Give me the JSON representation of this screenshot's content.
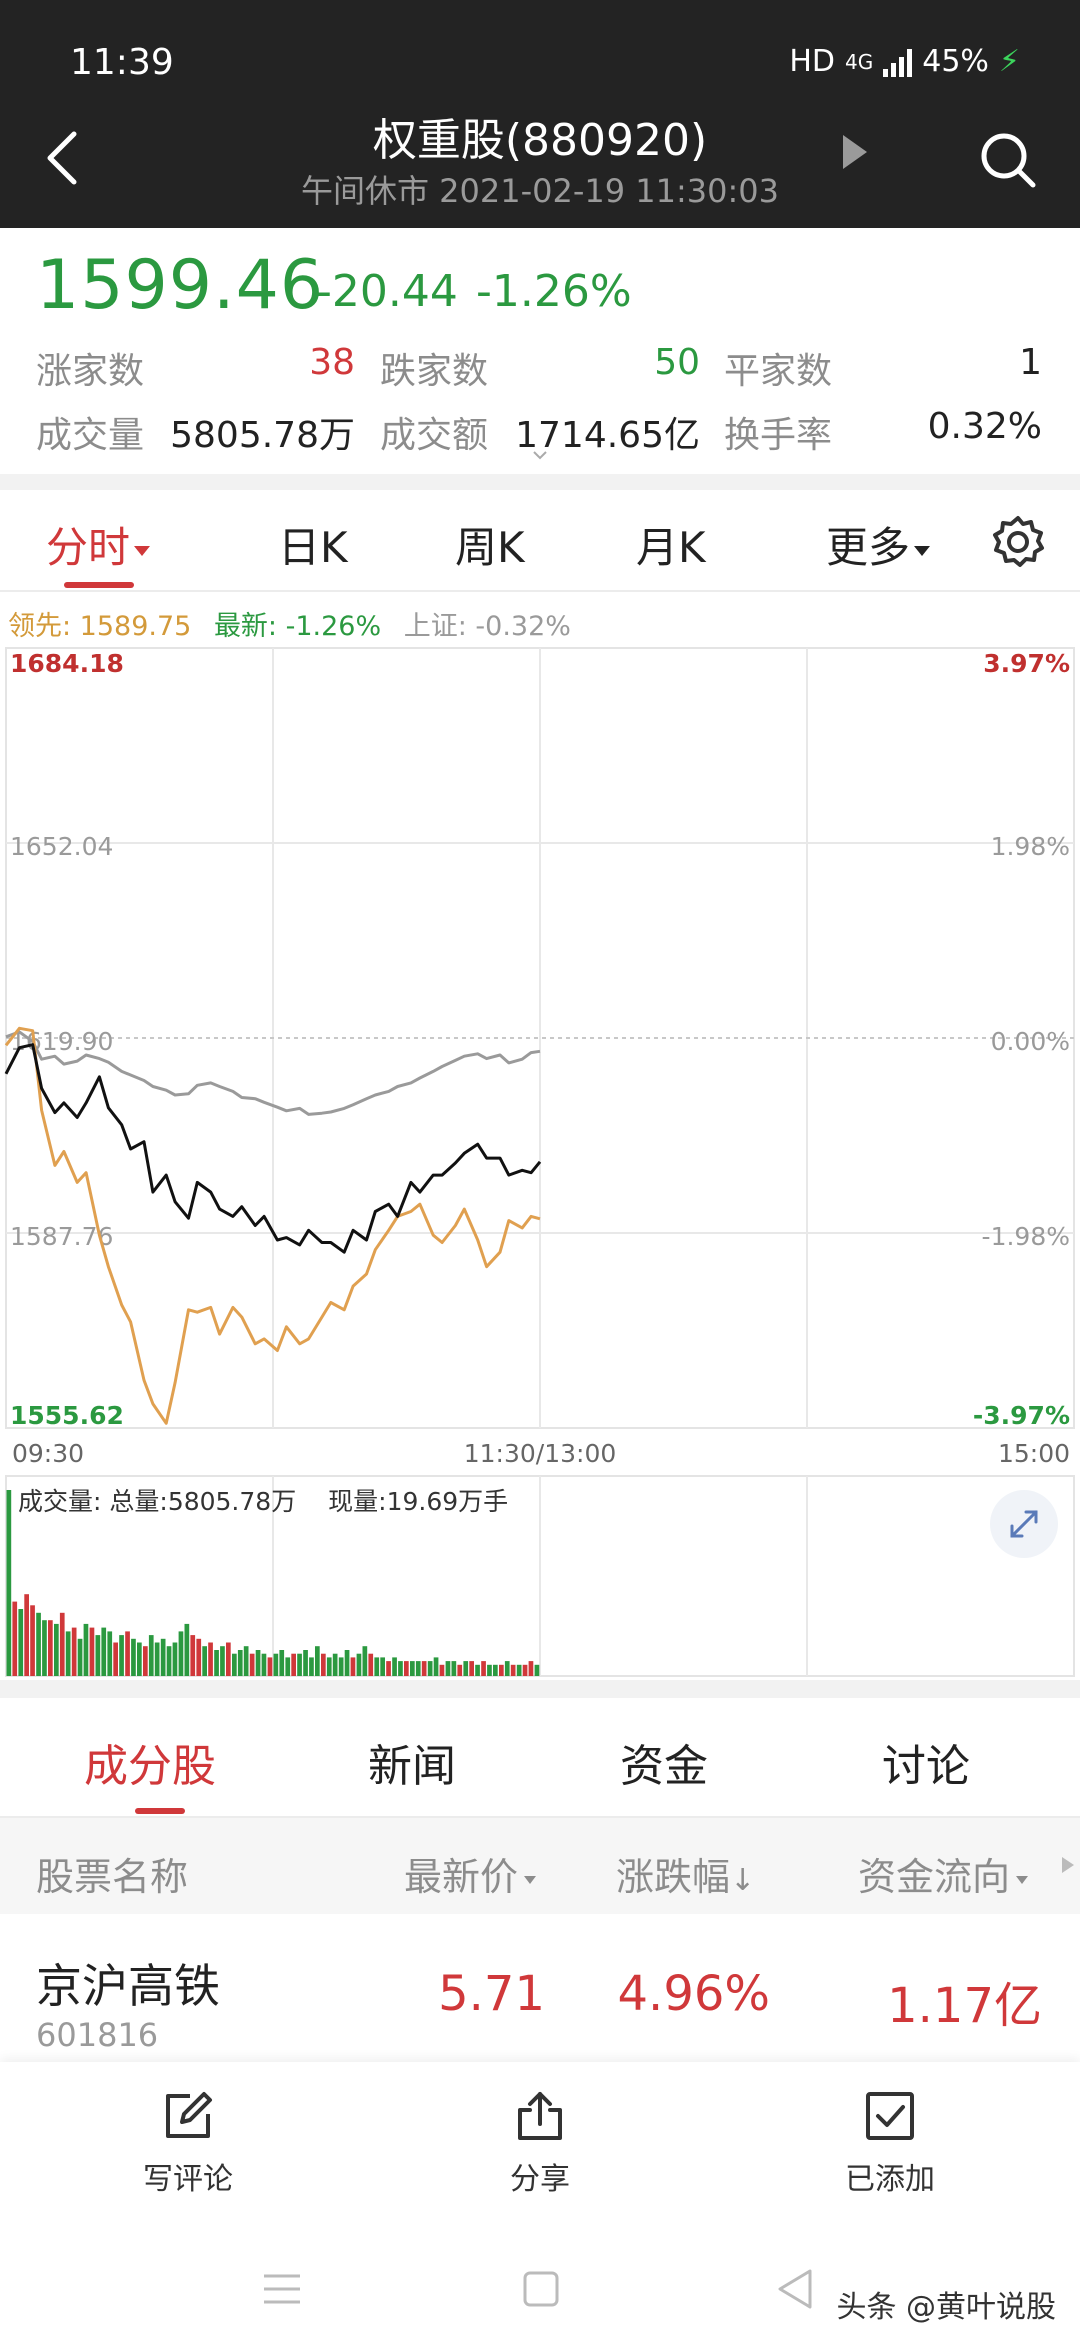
{
  "status_bar": {
    "time": "11:39",
    "network": "HD",
    "signal": "4G",
    "battery": "45%"
  },
  "header": {
    "title": "权重股(880920)",
    "subtitle": "午间休市 2021-02-19 11:30:03"
  },
  "quote": {
    "price": "1599.46",
    "change": "-20.44",
    "change_pct": "-1.26%",
    "rise_label": "涨家数",
    "rise_value": "38",
    "fall_label": "跌家数",
    "fall_value": "50",
    "flat_label": "平家数",
    "flat_value": "1",
    "volume_label": "成交量",
    "volume_value": "5805.78万",
    "amount_label": "成交额",
    "amount_value": "1714.65亿",
    "turnover_label": "换手率",
    "turnover_value": "0.32%"
  },
  "period_tabs": [
    "分时",
    "日K",
    "周K",
    "月K",
    "更多"
  ],
  "legend": {
    "leader": "领先: 1589.75",
    "latest": "最新: -1.26%",
    "index": "上证: -0.32%"
  },
  "chart_data": {
    "type": "line",
    "y_ticks_left": [
      "1684.18",
      "1652.04",
      "1619.90",
      "1587.76",
      "1555.62"
    ],
    "y_ticks_right": [
      "3.97%",
      "1.98%",
      "0.00%",
      "-1.98%",
      "-3.97%"
    ],
    "ylim": [
      1555.62,
      1684.18
    ],
    "x_ticks": [
      "09:30",
      "11:30/13:00",
      "15:00"
    ],
    "series": [
      {
        "color": "#111111",
        "x": [
          0,
          3,
          6,
          8,
          11,
          13,
          16,
          18,
          21,
          23,
          26,
          28,
          31,
          33,
          36,
          38,
          41,
          43,
          46,
          48,
          51,
          53,
          56,
          58,
          61,
          63,
          66,
          68,
          71,
          73,
          76,
          78,
          81,
          83,
          86,
          88,
          91,
          93,
          96,
          98,
          101,
          103,
          106,
          108,
          111,
          113,
          116,
          118,
          120
        ],
        "values": [
          1614.0,
          1618.3,
          1618.8,
          1611.6,
          1607.6,
          1609.2,
          1606.8,
          1609.2,
          1613.5,
          1608.4,
          1605.6,
          1601.6,
          1602.8,
          1594.5,
          1597.3,
          1592.9,
          1590.2,
          1596.1,
          1594.5,
          1591.7,
          1590.5,
          1592.1,
          1589.0,
          1590.5,
          1586.6,
          1587.0,
          1585.8,
          1588.2,
          1586.2,
          1586.2,
          1584.6,
          1588.2,
          1586.6,
          1591.3,
          1592.5,
          1590.5,
          1596.1,
          1594.5,
          1597.3,
          1597.3,
          1599.3,
          1600.9,
          1602.4,
          1600.1,
          1600.1,
          1597.3,
          1598.1,
          1597.7,
          1599.5
        ]
      },
      {
        "color": "#e0a050",
        "x": [
          0,
          3,
          6,
          8,
          11,
          13,
          16,
          18,
          21,
          23,
          26,
          28,
          31,
          33,
          36,
          38,
          41,
          43,
          46,
          48,
          51,
          53,
          56,
          58,
          61,
          63,
          66,
          68,
          71,
          73,
          76,
          78,
          81,
          83,
          86,
          88,
          91,
          93,
          96,
          98,
          101,
          103,
          106,
          108,
          111,
          113,
          116,
          118,
          120
        ],
        "values": [
          1618.7,
          1621.5,
          1621.1,
          1608.0,
          1598.9,
          1601.2,
          1596.1,
          1597.7,
          1587.4,
          1582.2,
          1575.9,
          1573.1,
          1563.5,
          1559.6,
          1556.4,
          1563.1,
          1575.1,
          1574.7,
          1575.5,
          1571.1,
          1575.5,
          1573.9,
          1569.5,
          1570.3,
          1568.4,
          1572.3,
          1569.5,
          1570.3,
          1573.9,
          1576.3,
          1575.1,
          1579.0,
          1581.0,
          1585.0,
          1588.2,
          1590.5,
          1591.3,
          1592.5,
          1587.4,
          1586.2,
          1589.0,
          1591.7,
          1586.6,
          1582.2,
          1584.6,
          1589.8,
          1588.6,
          1590.5,
          1590.1
        ]
      },
      {
        "color": "#9a9a9a",
        "x": [
          0,
          3,
          6,
          8,
          11,
          13,
          16,
          18,
          21,
          23,
          26,
          28,
          31,
          33,
          36,
          38,
          41,
          43,
          46,
          48,
          51,
          53,
          56,
          58,
          61,
          63,
          66,
          68,
          71,
          73,
          76,
          78,
          81,
          83,
          86,
          88,
          91,
          93,
          96,
          98,
          101,
          103,
          106,
          108,
          111,
          113,
          116,
          118,
          120
        ],
        "values": [
          1620.1,
          1620.9,
          1619.3,
          1616.4,
          1616.9,
          1615.6,
          1616.1,
          1617.1,
          1616.5,
          1615.9,
          1614.4,
          1613.8,
          1612.9,
          1611.9,
          1611.3,
          1610.5,
          1610.7,
          1612.1,
          1612.5,
          1611.9,
          1611.1,
          1610.1,
          1609.9,
          1609.3,
          1608.5,
          1607.9,
          1608.3,
          1607.3,
          1607.5,
          1607.7,
          1608.3,
          1608.9,
          1609.9,
          1610.5,
          1611.1,
          1611.9,
          1612.5,
          1613.3,
          1614.4,
          1615.2,
          1616.2,
          1616.9,
          1617.3,
          1616.5,
          1617.1,
          1615.8,
          1616.4,
          1617.5,
          1617.7
        ]
      }
    ],
    "volume": {
      "total": "总量:5805.78万",
      "current": "现量:19.69万手",
      "label": "成交量:",
      "bars": [
        {
          "v": 100,
          "c": "g"
        },
        {
          "v": 40,
          "c": "r"
        },
        {
          "v": 36,
          "c": "g"
        },
        {
          "v": 44,
          "c": "r"
        },
        {
          "v": 38,
          "c": "r"
        },
        {
          "v": 34,
          "c": "g"
        },
        {
          "v": 30,
          "c": "g"
        },
        {
          "v": 30,
          "c": "r"
        },
        {
          "v": 28,
          "c": "g"
        },
        {
          "v": 34,
          "c": "r"
        },
        {
          "v": 24,
          "c": "g"
        },
        {
          "v": 26,
          "c": "r"
        },
        {
          "v": 20,
          "c": "g"
        },
        {
          "v": 28,
          "c": "g"
        },
        {
          "v": 26,
          "c": "r"
        },
        {
          "v": 22,
          "c": "g"
        },
        {
          "v": 26,
          "c": "g"
        },
        {
          "v": 24,
          "c": "g"
        },
        {
          "v": 18,
          "c": "r"
        },
        {
          "v": 22,
          "c": "g"
        },
        {
          "v": 24,
          "c": "r"
        },
        {
          "v": 20,
          "c": "g"
        },
        {
          "v": 18,
          "c": "g"
        },
        {
          "v": 16,
          "c": "r"
        },
        {
          "v": 22,
          "c": "g"
        },
        {
          "v": 18,
          "c": "g"
        },
        {
          "v": 20,
          "c": "g"
        },
        {
          "v": 16,
          "c": "g"
        },
        {
          "v": 18,
          "c": "g"
        },
        {
          "v": 24,
          "c": "g"
        },
        {
          "v": 28,
          "c": "g"
        },
        {
          "v": 22,
          "c": "r"
        },
        {
          "v": 20,
          "c": "r"
        },
        {
          "v": 16,
          "c": "g"
        },
        {
          "v": 18,
          "c": "r"
        },
        {
          "v": 14,
          "c": "g"
        },
        {
          "v": 16,
          "c": "g"
        },
        {
          "v": 18,
          "c": "r"
        },
        {
          "v": 12,
          "c": "g"
        },
        {
          "v": 14,
          "c": "g"
        },
        {
          "v": 16,
          "c": "g"
        },
        {
          "v": 12,
          "c": "r"
        },
        {
          "v": 14,
          "c": "g"
        },
        {
          "v": 12,
          "c": "g"
        },
        {
          "v": 10,
          "c": "r"
        },
        {
          "v": 12,
          "c": "g"
        },
        {
          "v": 14,
          "c": "g"
        },
        {
          "v": 10,
          "c": "g"
        },
        {
          "v": 12,
          "c": "r"
        },
        {
          "v": 12,
          "c": "g"
        },
        {
          "v": 14,
          "c": "g"
        },
        {
          "v": 10,
          "c": "g"
        },
        {
          "v": 16,
          "c": "g"
        },
        {
          "v": 12,
          "c": "r"
        },
        {
          "v": 10,
          "c": "g"
        },
        {
          "v": 12,
          "c": "g"
        },
        {
          "v": 10,
          "c": "g"
        },
        {
          "v": 14,
          "c": "g"
        },
        {
          "v": 10,
          "c": "r"
        },
        {
          "v": 12,
          "c": "g"
        },
        {
          "v": 16,
          "c": "g"
        },
        {
          "v": 12,
          "c": "r"
        },
        {
          "v": 10,
          "c": "g"
        },
        {
          "v": 10,
          "c": "g"
        },
        {
          "v": 8,
          "c": "r"
        },
        {
          "v": 10,
          "c": "g"
        },
        {
          "v": 8,
          "c": "g"
        },
        {
          "v": 8,
          "c": "r"
        },
        {
          "v": 8,
          "c": "g"
        },
        {
          "v": 8,
          "c": "g"
        },
        {
          "v": 8,
          "c": "r"
        },
        {
          "v": 8,
          "c": "g"
        },
        {
          "v": 10,
          "c": "g"
        },
        {
          "v": 6,
          "c": "r"
        },
        {
          "v": 8,
          "c": "g"
        },
        {
          "v": 8,
          "c": "g"
        },
        {
          "v": 6,
          "c": "r"
        },
        {
          "v": 8,
          "c": "g"
        },
        {
          "v": 8,
          "c": "r"
        },
        {
          "v": 6,
          "c": "g"
        },
        {
          "v": 8,
          "c": "r"
        },
        {
          "v": 6,
          "c": "g"
        },
        {
          "v": 6,
          "c": "g"
        },
        {
          "v": 6,
          "c": "r"
        },
        {
          "v": 8,
          "c": "g"
        },
        {
          "v": 6,
          "c": "r"
        },
        {
          "v": 6,
          "c": "g"
        },
        {
          "v": 6,
          "c": "r"
        },
        {
          "v": 8,
          "c": "r"
        },
        {
          "v": 6,
          "c": "g"
        }
      ]
    }
  },
  "content_tabs": [
    "成分股",
    "新闻",
    "资金",
    "讨论"
  ],
  "table": {
    "headers": [
      "股票名称",
      "最新价",
      "涨跌幅",
      "资金流向"
    ],
    "rows": [
      {
        "name": "京沪高铁",
        "code": "601816",
        "price": "5.71",
        "change": "4.96%",
        "flow": "1.17亿"
      }
    ]
  },
  "actions": [
    {
      "label": "写评论",
      "icon": "edit-icon"
    },
    {
      "label": "分享",
      "icon": "share-icon"
    },
    {
      "label": "已添加",
      "icon": "check-icon"
    }
  ],
  "watermark": "头条 @黄叶说股",
  "colors": {
    "up": "#d0383a",
    "down": "#2b9940",
    "leader": "#d39a3a"
  }
}
